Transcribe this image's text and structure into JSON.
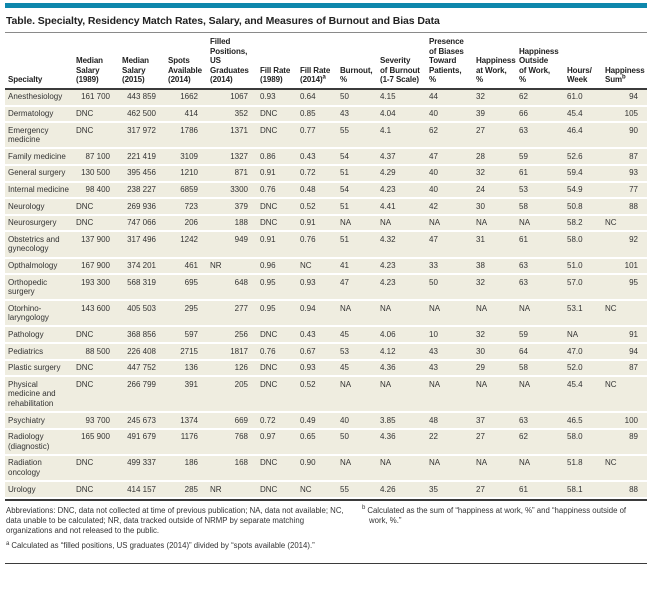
{
  "title": "Table. Specialty, Residency Match Rates, Salary, and Measures of Burnout and Bias Data",
  "colors": {
    "accent": "#0e87ac",
    "row_background": "#efede0",
    "rule": "#3b3b3b",
    "text": "#333333"
  },
  "table": {
    "columns": [
      {
        "id": "specialty",
        "lines": [
          "Specialty"
        ],
        "align": "left",
        "width": 68
      },
      {
        "id": "median-salary-1989",
        "lines": [
          "Median",
          "Salary",
          "(1989)"
        ],
        "align": "right",
        "width": 46
      },
      {
        "id": "median-salary-2015",
        "lines": [
          "Median",
          "Salary",
          "(2015)"
        ],
        "align": "right",
        "width": 46
      },
      {
        "id": "spots-available-2014",
        "lines": [
          "Spots",
          "Available",
          "(2014)"
        ],
        "align": "right",
        "width": 42
      },
      {
        "id": "filled-positions-us-graduates-2014",
        "lines": [
          "Filled",
          "Positions,",
          "US",
          "Graduates",
          "(2014)"
        ],
        "align": "right",
        "width": 50
      },
      {
        "id": "fill-rate-1989",
        "lines": [
          "Fill Rate",
          "(1989)"
        ],
        "align": "left",
        "width": 40
      },
      {
        "id": "fill-rate-2014",
        "lines": [
          "Fill Rate",
          "(2014)"
        ],
        "sup": "a",
        "align": "left",
        "width": 40
      },
      {
        "id": "burnout-pct",
        "lines": [
          "Burnout,",
          "%"
        ],
        "align": "left",
        "width": 40
      },
      {
        "id": "severity-of-burnout",
        "lines": [
          "Severity",
          "of Burnout",
          "(1-7 Scale)"
        ],
        "align": "left",
        "width": 49
      },
      {
        "id": "biases-toward-patients-pct",
        "lines": [
          "Presence",
          "of Biases",
          "Toward",
          "Patients,",
          "%"
        ],
        "align": "left",
        "width": 47
      },
      {
        "id": "happiness-at-work-pct",
        "lines": [
          "Happiness",
          "at Work,",
          "%"
        ],
        "align": "left",
        "width": 43
      },
      {
        "id": "happiness-outside-work-pct",
        "lines": [
          "Happiness",
          "Outside",
          "of Work,",
          "%"
        ],
        "align": "left",
        "width": 48
      },
      {
        "id": "hours-per-week",
        "lines": [
          "Hours/",
          "Week"
        ],
        "align": "left",
        "width": 38
      },
      {
        "id": "happiness-sum",
        "lines": [
          "Happiness",
          "Sum"
        ],
        "sup": "b",
        "align": "right",
        "width": 45
      }
    ],
    "abbreviation_values": [
      "DNC",
      "NA",
      "NC",
      "NR"
    ],
    "rows": [
      {
        "specialty": "Anesthesiology",
        "cells": [
          "161 700",
          "443 859",
          "1662",
          "1067",
          "0.93",
          "0.64",
          "50",
          "4.15",
          "44",
          "32",
          "62",
          "61.0",
          "94"
        ]
      },
      {
        "specialty": "Dermatology",
        "cells": [
          "DNC",
          "462 500",
          "414",
          "352",
          "DNC",
          "0.85",
          "43",
          "4.04",
          "40",
          "39",
          "66",
          "45.4",
          "105"
        ]
      },
      {
        "specialty": "Emergency medicine",
        "cells": [
          "DNC",
          "317 972",
          "1786",
          "1371",
          "DNC",
          "0.77",
          "55",
          "4.1",
          "62",
          "27",
          "63",
          "46.4",
          "90"
        ]
      },
      {
        "specialty": "Family medicine",
        "cells": [
          "87 100",
          "221 419",
          "3109",
          "1327",
          "0.86",
          "0.43",
          "54",
          "4.37",
          "47",
          "28",
          "59",
          "52.6",
          "87"
        ]
      },
      {
        "specialty": "General surgery",
        "cells": [
          "130 500",
          "395 456",
          "1210",
          "871",
          "0.91",
          "0.72",
          "51",
          "4.29",
          "40",
          "32",
          "61",
          "59.4",
          "93"
        ]
      },
      {
        "specialty": "Internal medicine",
        "cells": [
          "98 400",
          "238 227",
          "6859",
          "3300",
          "0.76",
          "0.48",
          "54",
          "4.23",
          "40",
          "24",
          "53",
          "54.9",
          "77"
        ]
      },
      {
        "specialty": "Neurology",
        "cells": [
          "DNC",
          "269 936",
          "723",
          "379",
          "DNC",
          "0.52",
          "51",
          "4.41",
          "42",
          "30",
          "58",
          "50.8",
          "88"
        ]
      },
      {
        "specialty": "Neurosurgery",
        "cells": [
          "DNC",
          "747 066",
          "206",
          "188",
          "DNC",
          "0.91",
          "NA",
          "NA",
          "NA",
          "NA",
          "NA",
          "58.2",
          "NC"
        ]
      },
      {
        "specialty": "Obstetrics and gynecology",
        "cells": [
          "137 900",
          "317 496",
          "1242",
          "949",
          "0.91",
          "0.76",
          "51",
          "4.32",
          "47",
          "31",
          "61",
          "58.0",
          "92"
        ]
      },
      {
        "specialty": "Opthalmology",
        "cells": [
          "167 900",
          "374 201",
          "461",
          "NR",
          "0.96",
          "NC",
          "41",
          "4.23",
          "33",
          "38",
          "63",
          "51.0",
          "101"
        ]
      },
      {
        "specialty": "Orthopedic surgery",
        "cells": [
          "193 300",
          "568 319",
          "695",
          "648",
          "0.95",
          "0.93",
          "47",
          "4.23",
          "50",
          "32",
          "63",
          "57.0",
          "95"
        ]
      },
      {
        "specialty": "Otorhino-laryngology",
        "cells": [
          "143 600",
          "405 503",
          "295",
          "277",
          "0.95",
          "0.94",
          "NA",
          "NA",
          "NA",
          "NA",
          "NA",
          "53.1",
          "NC"
        ]
      },
      {
        "specialty": "Pathology",
        "cells": [
          "DNC",
          "368 856",
          "597",
          "256",
          "DNC",
          "0.43",
          "45",
          "4.06",
          "10",
          "32",
          "59",
          "NA",
          "91"
        ]
      },
      {
        "specialty": "Pediatrics",
        "cells": [
          "88 500",
          "226 408",
          "2715",
          "1817",
          "0.76",
          "0.67",
          "53",
          "4.12",
          "43",
          "30",
          "64",
          "47.0",
          "94"
        ]
      },
      {
        "specialty": "Plastic surgery",
        "cells": [
          "DNC",
          "447 752",
          "136",
          "126",
          "DNC",
          "0.93",
          "45",
          "4.36",
          "43",
          "29",
          "58",
          "52.0",
          "87"
        ]
      },
      {
        "specialty": "Physical medicine and rehabilitation",
        "cells": [
          "DNC",
          "266 799",
          "391",
          "205",
          "DNC",
          "0.52",
          "NA",
          "NA",
          "NA",
          "NA",
          "NA",
          "45.4",
          "NC"
        ]
      },
      {
        "specialty": "Psychiatry",
        "cells": [
          "93 700",
          "245 673",
          "1374",
          "669",
          "0.72",
          "0.49",
          "40",
          "3.85",
          "48",
          "37",
          "63",
          "46.5",
          "100"
        ]
      },
      {
        "specialty": "Radiology (diagnostic)",
        "cells": [
          "165 900",
          "491 679",
          "1176",
          "768",
          "0.97",
          "0.65",
          "50",
          "4.36",
          "22",
          "27",
          "62",
          "58.0",
          "89"
        ]
      },
      {
        "specialty": "Radiation oncology",
        "cells": [
          "DNC",
          "499 337",
          "186",
          "168",
          "DNC",
          "0.90",
          "NA",
          "NA",
          "NA",
          "NA",
          "NA",
          "51.8",
          "NC"
        ]
      },
      {
        "specialty": "Urology",
        "cells": [
          "DNC",
          "414 157",
          "285",
          "NR",
          "DNC",
          "NC",
          "55",
          "4.26",
          "35",
          "27",
          "61",
          "58.1",
          "88"
        ]
      }
    ]
  },
  "footnotes": {
    "abbreviations": "Abbreviations: DNC, data not collected at time of previous publication; NA, data not available; NC, data unable to be calculated; NR, data tracked outside of NRMP by separate matching organizations and not released to the public.",
    "a": {
      "marker": "a",
      "text": "Calculated as “filled positions, US graduates (2014)” divided by “spots available (2014).”"
    },
    "b": {
      "marker": "b",
      "text": "Calculated as the sum of “happiness at work, %” and “happiness outside of work, %.”"
    }
  }
}
